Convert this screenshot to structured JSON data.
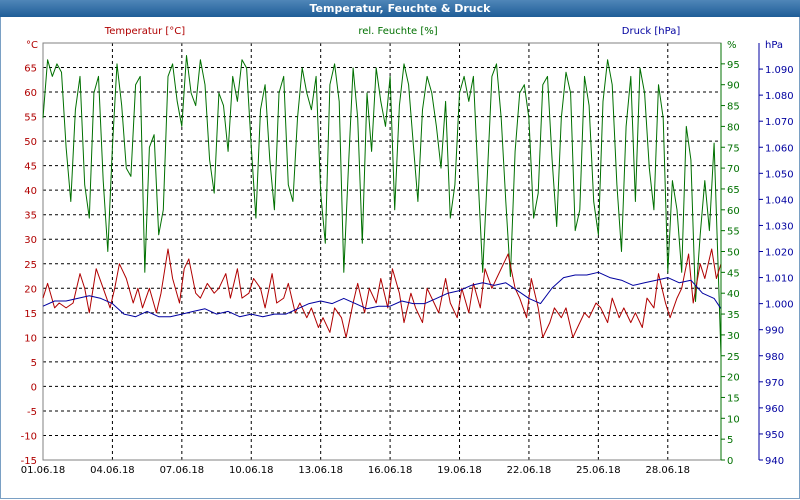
{
  "window": {
    "title": "Temperatur, Feuchte & Druck"
  },
  "chart_data": {
    "type": "line",
    "title": "Temperatur, Feuchte & Druck",
    "colors": {
      "temperature": "#b00000",
      "humidity": "#007000",
      "pressure": "#0000a0",
      "grid": "#000000",
      "title_bar": "#2e6da4"
    },
    "grid": true,
    "x": {
      "start": "01.06.18",
      "end": "30.06.18",
      "tick_labels": [
        "01.06.18",
        "04.06.18",
        "07.06.18",
        "10.06.18",
        "13.06.18",
        "16.06.18",
        "19.06.18",
        "22.06.18",
        "25.06.18",
        "28.06.18"
      ]
    },
    "axes": {
      "temperature": {
        "label": "Temperatur [°C]",
        "unit": "°C",
        "ylim": [
          -15,
          70
        ],
        "ticks": [
          -15,
          -10,
          -5,
          0,
          5,
          10,
          15,
          20,
          25,
          30,
          35,
          40,
          45,
          50,
          55,
          60,
          65
        ],
        "tick_labels": [
          "-15",
          "-10",
          "-5",
          "0",
          "5",
          "10",
          "15",
          "20",
          "25",
          "30",
          "35",
          "40",
          "45",
          "50",
          "55",
          "60",
          "65"
        ]
      },
      "humidity": {
        "label": "rel. Feuchte [%]",
        "unit": "%",
        "ylim": [
          0,
          100
        ],
        "ticks": [
          0,
          5,
          10,
          15,
          20,
          25,
          30,
          35,
          40,
          45,
          50,
          55,
          60,
          65,
          70,
          75,
          80,
          85,
          90,
          95
        ],
        "tick_labels": [
          "0",
          "5",
          "10",
          "15",
          "20",
          "25",
          "30",
          "35",
          "40",
          "45",
          "50",
          "55",
          "60",
          "65",
          "70",
          "75",
          "80",
          "85",
          "90",
          "95"
        ]
      },
      "pressure": {
        "label": "Druck [hPa]",
        "unit": "hPa",
        "ylim": [
          940,
          1100
        ],
        "ticks": [
          940,
          950,
          960,
          970,
          980,
          990,
          1000,
          1010,
          1020,
          1030,
          1040,
          1050,
          1060,
          1070,
          1080,
          1090
        ],
        "tick_labels": [
          "940",
          "950",
          "960",
          "970",
          "980",
          "990",
          "1.000",
          "1.010",
          "1.020",
          "1.030",
          "1.040",
          "1.050",
          "1.060",
          "1.070",
          "1.080",
          "1.090"
        ]
      }
    },
    "series": [
      {
        "name": "Temperatur [°C]",
        "axis": "temperature",
        "x": [
          0,
          0.2,
          0.5,
          0.7,
          1.0,
          1.3,
          1.6,
          1.8,
          2.0,
          2.3,
          2.6,
          2.9,
          3.1,
          3.3,
          3.6,
          3.9,
          4.1,
          4.3,
          4.6,
          4.9,
          5.1,
          5.4,
          5.6,
          5.9,
          6.1,
          6.3,
          6.6,
          6.8,
          7.1,
          7.4,
          7.6,
          7.9,
          8.1,
          8.4,
          8.6,
          8.9,
          9.1,
          9.4,
          9.6,
          9.9,
          10.1,
          10.4,
          10.6,
          10.9,
          11.1,
          11.4,
          11.6,
          11.9,
          12.1,
          12.4,
          12.6,
          12.9,
          13.1,
          13.4,
          13.6,
          13.9,
          14.1,
          14.4,
          14.6,
          14.9,
          15.1,
          15.4,
          15.6,
          15.9,
          16.1,
          16.4,
          16.6,
          16.9,
          17.1,
          17.4,
          17.6,
          17.9,
          18.1,
          18.4,
          18.6,
          18.9,
          19.1,
          19.4,
          19.6,
          19.9,
          20.1,
          20.4,
          20.6,
          20.9,
          21.1,
          21.4,
          21.6,
          21.9,
          22.1,
          22.4,
          22.6,
          22.9,
          23.1,
          23.4,
          23.6,
          23.9,
          24.1,
          24.4,
          24.6,
          24.9,
          25.1,
          25.4,
          25.6,
          25.9,
          26.1,
          26.4,
          26.6,
          26.9,
          27.1,
          27.4,
          27.6,
          27.9,
          28.1,
          28.4,
          28.6,
          28.9,
          29.1,
          29.3
        ],
        "values": [
          18,
          21,
          16,
          17,
          16,
          17,
          23,
          20,
          15,
          24,
          20,
          16,
          20,
          25,
          22,
          17,
          20,
          16,
          20,
          15,
          19,
          28,
          22,
          17,
          24,
          26,
          19,
          18,
          21,
          19,
          20,
          23,
          18,
          24,
          18,
          19,
          22,
          20,
          16,
          23,
          17,
          18,
          21,
          15,
          17,
          14,
          16,
          12,
          14,
          11,
          16,
          14,
          10,
          17,
          21,
          15,
          20,
          17,
          22,
          16,
          24,
          19,
          13,
          19,
          16,
          13,
          20,
          17,
          15,
          22,
          17,
          14,
          20,
          15,
          21,
          16,
          24,
          20,
          22,
          25,
          27,
          20,
          18,
          14,
          22,
          16,
          10,
          13,
          16,
          14,
          16,
          10,
          12,
          15,
          14,
          17,
          16,
          13,
          18,
          14,
          16,
          13,
          15,
          12,
          18,
          16,
          23,
          17,
          14,
          18,
          20,
          27,
          17,
          25,
          22,
          28,
          22,
          25
        ]
      },
      {
        "name": "rel. Feuchte [%]",
        "axis": "humidity",
        "x": [
          0,
          0.2,
          0.4,
          0.6,
          0.8,
          1.0,
          1.2,
          1.4,
          1.6,
          1.8,
          2.0,
          2.2,
          2.4,
          2.6,
          2.8,
          3.0,
          3.2,
          3.4,
          3.6,
          3.8,
          4.0,
          4.2,
          4.4,
          4.6,
          4.8,
          5.0,
          5.2,
          5.4,
          5.6,
          5.8,
          6.0,
          6.2,
          6.4,
          6.6,
          6.8,
          7.0,
          7.2,
          7.4,
          7.6,
          7.8,
          8.0,
          8.2,
          8.4,
          8.6,
          8.8,
          9.0,
          9.2,
          9.4,
          9.6,
          9.8,
          10.0,
          10.2,
          10.4,
          10.6,
          10.8,
          11.0,
          11.2,
          11.4,
          11.6,
          11.8,
          12.0,
          12.2,
          12.4,
          12.6,
          12.8,
          13.0,
          13.2,
          13.4,
          13.6,
          13.8,
          14.0,
          14.2,
          14.4,
          14.6,
          14.8,
          15.0,
          15.2,
          15.4,
          15.6,
          15.8,
          16.0,
          16.2,
          16.4,
          16.6,
          16.8,
          17.0,
          17.2,
          17.4,
          17.6,
          17.8,
          18.0,
          18.2,
          18.4,
          18.6,
          18.8,
          19.0,
          19.2,
          19.4,
          19.6,
          19.8,
          20.0,
          20.2,
          20.4,
          20.6,
          20.8,
          21.0,
          21.2,
          21.4,
          21.6,
          21.8,
          22.0,
          22.2,
          22.4,
          22.6,
          22.8,
          23.0,
          23.2,
          23.4,
          23.6,
          23.8,
          24.0,
          24.2,
          24.4,
          24.6,
          24.8,
          25.0,
          25.2,
          25.4,
          25.6,
          25.8,
          26.0,
          26.2,
          26.4,
          26.6,
          26.8,
          27.0,
          27.2,
          27.4,
          27.6,
          27.8,
          28.0,
          28.2,
          28.4,
          28.6,
          28.8,
          29.0,
          29.2,
          29.3
        ],
        "values": [
          82,
          96,
          92,
          95,
          93,
          75,
          62,
          84,
          92,
          66,
          58,
          88,
          92,
          67,
          50,
          75,
          95,
          85,
          70,
          68,
          90,
          92,
          45,
          75,
          78,
          54,
          60,
          92,
          95,
          86,
          80,
          97,
          88,
          85,
          96,
          90,
          72,
          64,
          88,
          85,
          74,
          92,
          86,
          96,
          94,
          75,
          58,
          84,
          90,
          72,
          60,
          88,
          92,
          66,
          62,
          82,
          94,
          88,
          84,
          92,
          64,
          52,
          90,
          95,
          86,
          45,
          70,
          94,
          82,
          52,
          88,
          74,
          94,
          86,
          80,
          92,
          60,
          85,
          95,
          90,
          76,
          62,
          84,
          92,
          88,
          80,
          70,
          86,
          58,
          66,
          88,
          92,
          86,
          92,
          68,
          45,
          68,
          92,
          95,
          82,
          62,
          44,
          74,
          88,
          90,
          82,
          58,
          64,
          90,
          92,
          72,
          56,
          82,
          93,
          88,
          55,
          60,
          92,
          85,
          62,
          54,
          86,
          96,
          90,
          66,
          50,
          80,
          92,
          62,
          94,
          88,
          70,
          60,
          90,
          82,
          45,
          67,
          60,
          45,
          80,
          72,
          38,
          54,
          67,
          55,
          76,
          42,
          25
        ]
      },
      {
        "name": "Druck [hPa]",
        "axis": "pressure",
        "x": [
          0,
          0.5,
          1.0,
          1.5,
          2.0,
          2.5,
          3.0,
          3.5,
          4.0,
          4.5,
          5.0,
          5.5,
          6.0,
          6.5,
          7.0,
          7.5,
          8.0,
          8.5,
          9.0,
          9.5,
          10.0,
          10.5,
          11.0,
          11.5,
          12.0,
          12.5,
          13.0,
          13.5,
          14.0,
          14.5,
          15.0,
          15.5,
          16.0,
          16.5,
          17.0,
          17.5,
          18.0,
          18.5,
          19.0,
          19.5,
          20.0,
          20.5,
          21.0,
          21.5,
          22.0,
          22.5,
          23.0,
          23.5,
          24.0,
          24.5,
          25.0,
          25.5,
          26.0,
          26.5,
          27.0,
          27.5,
          28.0,
          28.5,
          29.0,
          29.3
        ],
        "values": [
          999,
          1001,
          1001,
          1002,
          1003,
          1002,
          1000,
          996,
          995,
          997,
          995,
          995,
          996,
          997,
          998,
          996,
          997,
          995,
          996,
          995,
          996,
          996,
          998,
          1000,
          1001,
          1000,
          1002,
          1000,
          998,
          999,
          999,
          1001,
          1000,
          1000,
          1002,
          1004,
          1005,
          1007,
          1008,
          1007,
          1008,
          1005,
          1002,
          1000,
          1006,
          1010,
          1011,
          1011,
          1012,
          1010,
          1009,
          1007,
          1008,
          1009,
          1010,
          1008,
          1009,
          1004,
          1002,
          998
        ]
      }
    ]
  }
}
